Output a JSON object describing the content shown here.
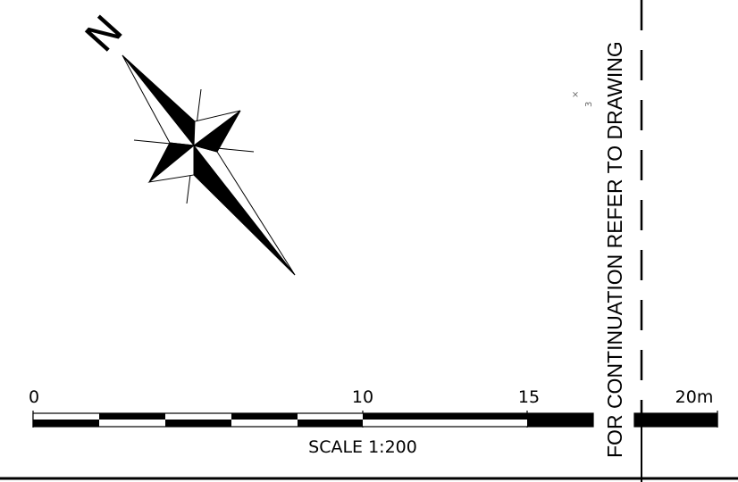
{
  "compass": {
    "north_label": "N"
  },
  "scale_bar": {
    "tick_labels": [
      "0",
      "10",
      "15",
      "20m"
    ],
    "caption": "SCALE 1:200"
  },
  "continuation_note": "FOR CONTINUATION REFER TO DRAWING",
  "stray_marks": [
    "×",
    "3"
  ]
}
